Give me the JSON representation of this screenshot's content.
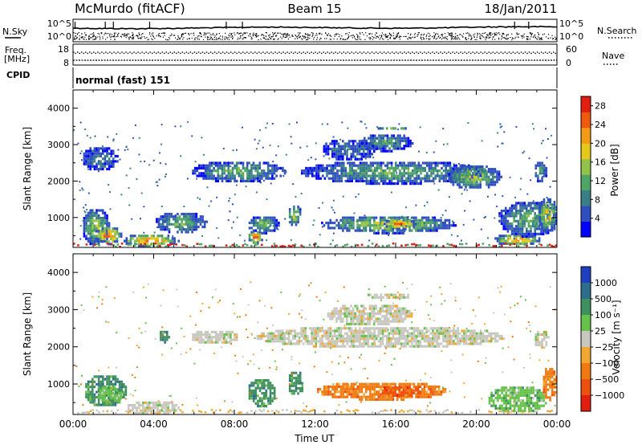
{
  "header": {
    "station": "McMurdo (fitACF)",
    "beam": "Beam 15",
    "date": "18/Jan/2011"
  },
  "nsky_panel": {
    "left_label": "N.Sky",
    "left_ticks": [
      "10^5",
      "10^0"
    ],
    "right_label": "N.Search",
    "right_ticks": [
      "10^5",
      "10^0"
    ],
    "right_legend_style": "dotted"
  },
  "freq_panel": {
    "left_label_1": "Freq.",
    "left_label_2": "[MHz]",
    "left_ticks": [
      "18",
      "8"
    ],
    "right_label": "Nave",
    "right_ticks": [
      "60",
      "0"
    ],
    "right_legend_style": "dotted"
  },
  "cpid_panel": {
    "label": "CPID",
    "program": "normal (fast) 151"
  },
  "chart_data": [
    {
      "type": "heatmap",
      "name": "power",
      "ylabel": "Slant Range [km]",
      "xlabel": "",
      "x_tick_labels": [],
      "xlim_hours": [
        0,
        24
      ],
      "ylim_km": [
        180,
        4500
      ],
      "y_ticks": [
        1000,
        2000,
        3000,
        4000
      ],
      "colorbar": {
        "label": "Power [dB]",
        "tick_labels": [
          "28",
          "24",
          "20",
          "16",
          "12",
          "8",
          "4"
        ],
        "tick_values": [
          28,
          24,
          20,
          16,
          12,
          8,
          4
        ],
        "range": [
          0,
          30
        ],
        "colors": [
          "#0000ff",
          "#2f4fbf",
          "#3a7f86",
          "#4fa566",
          "#93c24a",
          "#e6c81a",
          "#f29a14",
          "#ef5a10",
          "#e01f10"
        ]
      },
      "regions": [
        {
          "t0": 0.4,
          "t1": 1.8,
          "r0": 250,
          "r1": 1300,
          "level": 0.55
        },
        {
          "t0": 1.0,
          "t1": 2.4,
          "r0": 300,
          "r1": 800,
          "level": 0.9
        },
        {
          "t0": 2.4,
          "t1": 5.2,
          "r0": 200,
          "r1": 600,
          "level": 0.85
        },
        {
          "t0": 4.0,
          "t1": 6.6,
          "r0": 600,
          "r1": 1200,
          "level": 0.45
        },
        {
          "t0": 0.4,
          "t1": 2.2,
          "r0": 2300,
          "r1": 3000,
          "level": 0.3
        },
        {
          "t0": 5.8,
          "t1": 10.5,
          "r0": 2000,
          "r1": 2600,
          "level": 0.45
        },
        {
          "t0": 8.6,
          "t1": 9.4,
          "r0": 300,
          "r1": 700,
          "level": 0.95
        },
        {
          "t0": 8.6,
          "t1": 10.2,
          "r0": 600,
          "r1": 1100,
          "level": 0.5
        },
        {
          "t0": 10.6,
          "t1": 11.3,
          "r0": 800,
          "r1": 1400,
          "level": 0.6
        },
        {
          "t0": 11.2,
          "t1": 20.5,
          "r0": 1950,
          "r1": 2600,
          "level": 0.45
        },
        {
          "t0": 12.3,
          "t1": 15.0,
          "r0": 2600,
          "r1": 3200,
          "level": 0.3
        },
        {
          "t0": 14.2,
          "t1": 16.8,
          "r0": 2850,
          "r1": 3350,
          "level": 0.4
        },
        {
          "t0": 15.0,
          "t1": 16.6,
          "r0": 3450,
          "r1": 3550,
          "level": 0.7
        },
        {
          "t0": 12.2,
          "t1": 19.0,
          "r0": 600,
          "r1": 1100,
          "level": 0.6
        },
        {
          "t0": 15.3,
          "t1": 17.0,
          "r0": 700,
          "r1": 1000,
          "level": 0.95
        },
        {
          "t0": 18.5,
          "t1": 21.2,
          "r0": 1800,
          "r1": 2500,
          "level": 0.6
        },
        {
          "t0": 20.8,
          "t1": 23.2,
          "r0": 250,
          "r1": 600,
          "level": 0.85
        },
        {
          "t0": 21.0,
          "t1": 24.0,
          "r0": 500,
          "r1": 1500,
          "level": 0.45
        },
        {
          "t0": 23.0,
          "t1": 24.0,
          "r0": 600,
          "r1": 1600,
          "level": 0.7
        },
        {
          "t0": 22.8,
          "t1": 23.5,
          "r0": 2000,
          "r1": 2600,
          "level": 0.4
        }
      ]
    },
    {
      "type": "heatmap",
      "name": "velocity",
      "ylabel": "Slant Range [km]",
      "xlabel": "Time UT",
      "x_tick_labels": [
        "00:00",
        "04:00",
        "08:00",
        "12:00",
        "16:00",
        "20:00",
        "00:00"
      ],
      "x_tick_hours": [
        0,
        4,
        8,
        12,
        16,
        20,
        24
      ],
      "xlim_hours": [
        0,
        24
      ],
      "ylim_km": [
        180,
        4500
      ],
      "y_ticks": [
        1000,
        2000,
        3000,
        4000
      ],
      "colorbar": {
        "label": "Velocity [m s⁻¹]",
        "tick_labels": [
          "1000",
          "500",
          "100",
          "25",
          "−25",
          "−100",
          "−500",
          "−1000"
        ],
        "colors": [
          "#1f3fbf",
          "#2d6e8e",
          "#3f8f5f",
          "#66c24a",
          "#c8c8c0",
          "#f0a830",
          "#ef7a10",
          "#ee5010",
          "#e01f10"
        ]
      },
      "regions": [
        {
          "t0": 0.5,
          "t1": 2.6,
          "r0": 400,
          "r1": 1300,
          "cat": 2
        },
        {
          "t0": 1.2,
          "t1": 2.4,
          "r0": 500,
          "r1": 1000,
          "cat": 3
        },
        {
          "t0": 2.6,
          "t1": 5.2,
          "r0": 200,
          "r1": 600,
          "cat": 4
        },
        {
          "t0": 4.2,
          "t1": 4.8,
          "r0": 2150,
          "r1": 2500,
          "cat": 2
        },
        {
          "t0": 5.8,
          "t1": 8.2,
          "r0": 2100,
          "r1": 2500,
          "cat": 4
        },
        {
          "t0": 8.6,
          "t1": 10.0,
          "r0": 400,
          "r1": 1200,
          "cat": 2
        },
        {
          "t0": 10.6,
          "t1": 11.4,
          "r0": 700,
          "r1": 1400,
          "cat": 2
        },
        {
          "t0": 9.0,
          "t1": 21.5,
          "r0": 2000,
          "r1": 2600,
          "cat": 4
        },
        {
          "t0": 12.5,
          "t1": 16.8,
          "r0": 2600,
          "r1": 3200,
          "cat": 4
        },
        {
          "t0": 14.5,
          "t1": 16.8,
          "r0": 3300,
          "r1": 3500,
          "cat": 4
        },
        {
          "t0": 12.0,
          "t1": 18.5,
          "r0": 600,
          "r1": 1100,
          "cat": 6
        },
        {
          "t0": 15.2,
          "t1": 17.3,
          "r0": 700,
          "r1": 1000,
          "cat": 7
        },
        {
          "t0": 20.5,
          "t1": 23.5,
          "r0": 250,
          "r1": 1000,
          "cat": 3
        },
        {
          "t0": 23.2,
          "t1": 24.0,
          "r0": 600,
          "r1": 1500,
          "cat": 6
        },
        {
          "t0": 22.8,
          "t1": 23.6,
          "r0": 2000,
          "r1": 2500,
          "cat": 4
        }
      ]
    }
  ]
}
